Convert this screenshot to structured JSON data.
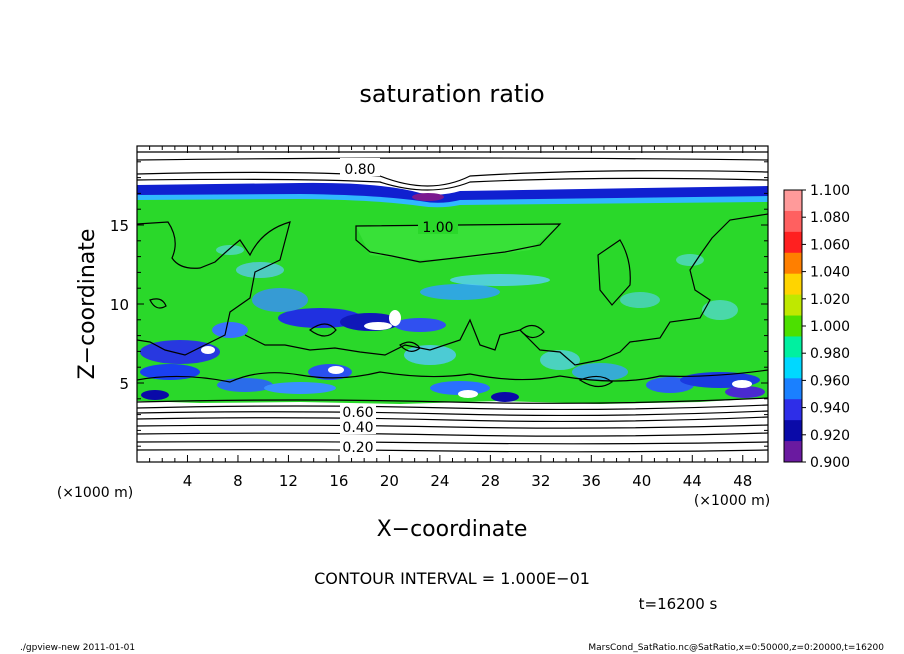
{
  "chart_data": {
    "type": "heatmap",
    "title": "saturation ratio",
    "xlabel": "X−coordinate",
    "ylabel": "Z−coordinate",
    "x_unit": "(×1000 m)",
    "y_unit": "(×1000 m)",
    "xlim": [
      0,
      50
    ],
    "ylim": [
      0,
      20
    ],
    "x_ticks": [
      4,
      8,
      12,
      16,
      20,
      24,
      28,
      32,
      36,
      40,
      44,
      48
    ],
    "y_ticks": [
      5,
      10,
      15
    ],
    "colorbar": {
      "levels": [
        "1.100",
        "1.080",
        "1.060",
        "1.040",
        "1.020",
        "1.000",
        "0.980",
        "0.960",
        "0.940",
        "0.920",
        "0.900"
      ],
      "colors": [
        "#ff9a9a",
        "#ff6060",
        "#ff2020",
        "#ff7f00",
        "#ffd400",
        "#bfe800",
        "#4ce000",
        "#00f0a0",
        "#00d8ff",
        "#1a80ff",
        "#2e2ee8",
        "#0a0aa8",
        "#6a1aa0"
      ]
    },
    "contour_labels": [
      {
        "text": "0.80",
        "x": 14.5,
        "z": 18.6
      },
      {
        "text": "1.00",
        "x": 20.5,
        "z": 14.8
      },
      {
        "text": "0.60",
        "x": 15.8,
        "z": 3.6
      },
      {
        "text": "0.40",
        "x": 15.8,
        "z": 2.4
      },
      {
        "text": "0.20",
        "x": 15.8,
        "z": 0.8
      }
    ],
    "contour_interval_text": "CONTOUR INTERVAL = 1.000E−01",
    "time_text": "t=16200 s"
  },
  "footer": {
    "left": "./gpview-new   2011-01-01",
    "right": "MarsCond_SatRatio.nc@SatRatio,x=0:50000,z=0:20000,t=16200"
  }
}
